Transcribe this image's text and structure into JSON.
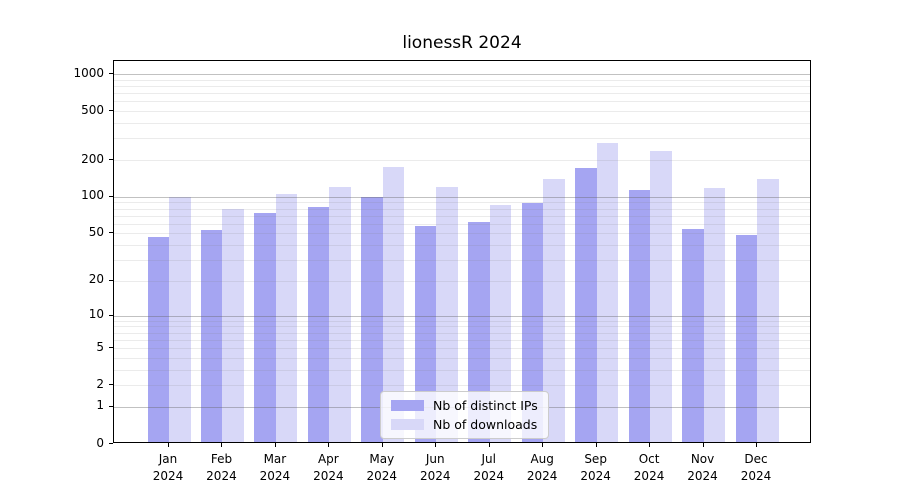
{
  "chart_data": {
    "type": "bar",
    "title": "lionessR 2024",
    "categories": [
      "Jan",
      "Feb",
      "Mar",
      "Apr",
      "May",
      "Jun",
      "Jul",
      "Aug",
      "Sep",
      "Oct",
      "Nov",
      "Dec"
    ],
    "year_label": "2024",
    "series": [
      {
        "name": "Nb of distinct IPs",
        "color": "#a5a5f2",
        "values": [
          45,
          51,
          71,
          79,
          96,
          56,
          60,
          86,
          166,
          110,
          52,
          47
        ]
      },
      {
        "name": "Nb of downloads",
        "color": "#d8d8f8",
        "values": [
          96,
          77,
          102,
          117,
          170,
          115,
          83,
          134,
          265,
          228,
          114,
          135
        ]
      }
    ],
    "xlabel": "",
    "ylabel": "",
    "yscale": "log1p",
    "yticks": [
      0,
      1,
      2,
      5,
      10,
      20,
      50,
      100,
      200,
      500,
      1000
    ],
    "ylim": [
      0,
      1277
    ],
    "grid": true,
    "legend_position": "lower-center"
  }
}
